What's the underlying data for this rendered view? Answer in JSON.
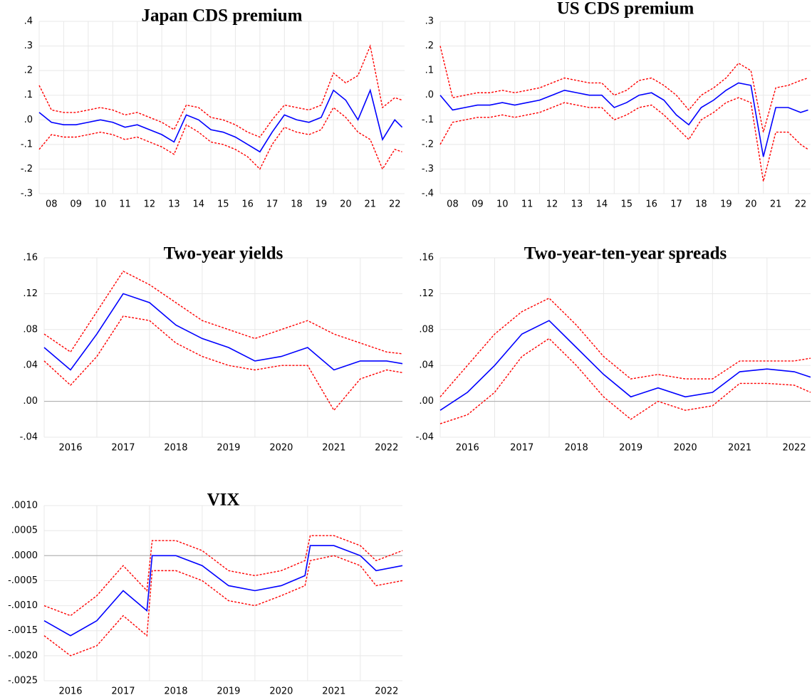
{
  "chart_data": [
    {
      "type": "line",
      "title": "Japan CDS premium",
      "x": [
        2008,
        2008.5,
        2009,
        2009.5,
        2010,
        2010.5,
        2011,
        2011.5,
        2012,
        2012.5,
        2013,
        2013.5,
        2014,
        2014.5,
        2015,
        2015.5,
        2016,
        2016.5,
        2017,
        2017.5,
        2018,
        2018.5,
        2019,
        2019.5,
        2020,
        2020.5,
        2021,
        2021.5,
        2022,
        2022.5,
        2022.8
      ],
      "series": [
        {
          "color": "#ff0000",
          "style": "dashed",
          "values": [
            0.14,
            0.04,
            0.03,
            0.03,
            0.04,
            0.05,
            0.04,
            0.02,
            0.03,
            0.01,
            -0.01,
            -0.04,
            0.06,
            0.05,
            0.01,
            0.0,
            -0.02,
            -0.05,
            -0.07,
            0.0,
            0.06,
            0.05,
            0.04,
            0.06,
            0.19,
            0.15,
            0.18,
            0.3,
            0.05,
            0.09,
            0.08
          ]
        },
        {
          "color": "#ff0000",
          "style": "dashed",
          "values": [
            -0.12,
            -0.06,
            -0.07,
            -0.07,
            -0.06,
            -0.05,
            -0.06,
            -0.08,
            -0.07,
            -0.09,
            -0.11,
            -0.14,
            -0.02,
            -0.05,
            -0.09,
            -0.1,
            -0.12,
            -0.15,
            -0.2,
            -0.1,
            -0.03,
            -0.05,
            -0.06,
            -0.04,
            0.05,
            0.01,
            -0.05,
            -0.08,
            -0.2,
            -0.12,
            -0.13
          ]
        },
        {
          "color": "#0000ff",
          "style": "solid",
          "values": [
            0.03,
            -0.01,
            -0.02,
            -0.02,
            -0.01,
            0.0,
            -0.01,
            -0.03,
            -0.02,
            -0.04,
            -0.06,
            -0.09,
            0.02,
            0.0,
            -0.04,
            -0.05,
            -0.07,
            -0.1,
            -0.13,
            -0.05,
            0.02,
            0.0,
            -0.01,
            0.01,
            0.12,
            0.08,
            0.0,
            0.12,
            -0.08,
            0.0,
            -0.03
          ]
        }
      ],
      "xlim": [
        2008,
        2022.9
      ],
      "xticks": [
        {
          "value": 2008,
          "label": "08"
        },
        {
          "value": 2009,
          "label": "09"
        },
        {
          "value": 2010,
          "label": "10"
        },
        {
          "value": 2011,
          "label": "11"
        },
        {
          "value": 2012,
          "label": "12"
        },
        {
          "value": 2013,
          "label": "13"
        },
        {
          "value": 2014,
          "label": "14"
        },
        {
          "value": 2015,
          "label": "15"
        },
        {
          "value": 2016,
          "label": "16"
        },
        {
          "value": 2017,
          "label": "17"
        },
        {
          "value": 2018,
          "label": "18"
        },
        {
          "value": 2019,
          "label": "19"
        },
        {
          "value": 2020,
          "label": "20"
        },
        {
          "value": 2021,
          "label": "21"
        },
        {
          "value": 2022,
          "label": "22"
        }
      ],
      "ylim": [
        -0.3,
        0.4
      ],
      "yticks": [
        {
          "value": 0.4,
          "label": ".4"
        },
        {
          "value": 0.3,
          "label": ".3"
        },
        {
          "value": 0.2,
          "label": ".2"
        },
        {
          "value": 0.1,
          "label": ".1"
        },
        {
          "value": 0,
          "label": ".0"
        },
        {
          "value": -0.1,
          "label": "-.1"
        },
        {
          "value": -0.2,
          "label": "-.2"
        },
        {
          "value": -0.3,
          "label": "-.3"
        }
      ],
      "grid": true,
      "zero_line": false
    },
    {
      "type": "line",
      "title": "US CDS premium",
      "x": [
        2008,
        2008.5,
        2009,
        2009.5,
        2010,
        2010.5,
        2011,
        2011.5,
        2012,
        2012.5,
        2013,
        2013.5,
        2014,
        2014.5,
        2015,
        2015.5,
        2016,
        2016.5,
        2017,
        2017.5,
        2018,
        2018.5,
        2019,
        2019.5,
        2020,
        2020.5,
        2021,
        2021.5,
        2022,
        2022.5,
        2022.8
      ],
      "series": [
        {
          "color": "#ff0000",
          "style": "dashed",
          "values": [
            0.2,
            -0.01,
            0.0,
            0.01,
            0.01,
            0.02,
            0.01,
            0.02,
            0.03,
            0.05,
            0.07,
            0.06,
            0.05,
            0.05,
            0.0,
            0.02,
            0.06,
            0.07,
            0.04,
            0.0,
            -0.06,
            0.0,
            0.03,
            0.07,
            0.13,
            0.1,
            -0.15,
            0.03,
            0.04,
            0.06,
            0.07
          ]
        },
        {
          "color": "#ff0000",
          "style": "dashed",
          "values": [
            -0.2,
            -0.11,
            -0.1,
            -0.09,
            -0.09,
            -0.08,
            -0.09,
            -0.08,
            -0.07,
            -0.05,
            -0.03,
            -0.04,
            -0.05,
            -0.05,
            -0.1,
            -0.08,
            -0.05,
            -0.04,
            -0.08,
            -0.13,
            -0.18,
            -0.1,
            -0.07,
            -0.03,
            -0.01,
            -0.03,
            -0.35,
            -0.15,
            -0.15,
            -0.2,
            -0.22
          ]
        },
        {
          "color": "#0000ff",
          "style": "solid",
          "values": [
            0.0,
            -0.06,
            -0.05,
            -0.04,
            -0.04,
            -0.03,
            -0.04,
            -0.03,
            -0.02,
            0.0,
            0.02,
            0.01,
            0.0,
            0.0,
            -0.05,
            -0.03,
            0.0,
            0.01,
            -0.02,
            -0.08,
            -0.12,
            -0.05,
            -0.02,
            0.02,
            0.05,
            0.04,
            -0.25,
            -0.05,
            -0.05,
            -0.07,
            -0.06
          ]
        }
      ],
      "xlim": [
        2008,
        2022.9
      ],
      "xticks": [
        {
          "value": 2008,
          "label": "08"
        },
        {
          "value": 2009,
          "label": "09"
        },
        {
          "value": 2010,
          "label": "10"
        },
        {
          "value": 2011,
          "label": "11"
        },
        {
          "value": 2012,
          "label": "12"
        },
        {
          "value": 2013,
          "label": "13"
        },
        {
          "value": 2014,
          "label": "14"
        },
        {
          "value": 2015,
          "label": "15"
        },
        {
          "value": 2016,
          "label": "16"
        },
        {
          "value": 2017,
          "label": "17"
        },
        {
          "value": 2018,
          "label": "18"
        },
        {
          "value": 2019,
          "label": "19"
        },
        {
          "value": 2020,
          "label": "20"
        },
        {
          "value": 2021,
          "label": "21"
        },
        {
          "value": 2022,
          "label": "22"
        }
      ],
      "ylim": [
        -0.4,
        0.3
      ],
      "yticks": [
        {
          "value": 0.3,
          "label": ".3"
        },
        {
          "value": 0.2,
          "label": ".2"
        },
        {
          "value": 0.1,
          "label": ".1"
        },
        {
          "value": 0,
          "label": ".0"
        },
        {
          "value": -0.1,
          "label": "-.1"
        },
        {
          "value": -0.2,
          "label": "-.2"
        },
        {
          "value": -0.3,
          "label": "-.3"
        },
        {
          "value": -0.4,
          "label": "-.4"
        }
      ],
      "grid": true,
      "zero_line": false
    },
    {
      "type": "line",
      "title": "Two-year yields",
      "x": [
        2016,
        2016.5,
        2017,
        2017.5,
        2018,
        2018.5,
        2019,
        2019.5,
        2020,
        2020.5,
        2021,
        2021.5,
        2022,
        2022.5,
        2022.8
      ],
      "series": [
        {
          "color": "#ff0000",
          "style": "dashed",
          "values": [
            0.075,
            0.055,
            0.1,
            0.145,
            0.13,
            0.11,
            0.09,
            0.08,
            0.07,
            0.08,
            0.09,
            0.075,
            0.065,
            0.055,
            0.053
          ]
        },
        {
          "color": "#ff0000",
          "style": "dashed",
          "values": [
            0.045,
            0.018,
            0.05,
            0.095,
            0.09,
            0.065,
            0.05,
            0.04,
            0.035,
            0.04,
            0.04,
            -0.01,
            0.025,
            0.035,
            0.032
          ]
        },
        {
          "color": "#0000ff",
          "style": "solid",
          "values": [
            0.06,
            0.035,
            0.075,
            0.12,
            0.11,
            0.085,
            0.07,
            0.06,
            0.045,
            0.05,
            0.06,
            0.035,
            0.045,
            0.045,
            0.042
          ]
        }
      ],
      "xlim": [
        2016,
        2022.8
      ],
      "xticks": [
        2016,
        2017,
        2018,
        2019,
        2020,
        2021,
        2022
      ],
      "ylim": [
        -0.04,
        0.16
      ],
      "yticks": [
        {
          "value": 0.16,
          "label": ".16"
        },
        {
          "value": 0.12,
          "label": ".12"
        },
        {
          "value": 0.08,
          "label": ".08"
        },
        {
          "value": 0.04,
          "label": ".04"
        },
        {
          "value": 0,
          "label": ".00"
        },
        {
          "value": -0.04,
          "label": "-.04"
        }
      ],
      "grid": true,
      "zero_line": true
    },
    {
      "type": "line",
      "title": "Two-year-ten-year spreads",
      "x": [
        2016,
        2016.5,
        2017,
        2017.5,
        2018,
        2018.5,
        2019,
        2019.5,
        2020,
        2020.5,
        2021,
        2021.5,
        2022,
        2022.5,
        2022.8
      ],
      "series": [
        {
          "color": "#ff0000",
          "style": "dashed",
          "values": [
            0.005,
            0.04,
            0.075,
            0.1,
            0.115,
            0.085,
            0.05,
            0.025,
            0.03,
            0.025,
            0.025,
            0.045,
            0.045,
            0.045,
            0.048
          ]
        },
        {
          "color": "#ff0000",
          "style": "dashed",
          "values": [
            -0.025,
            -0.015,
            0.01,
            0.05,
            0.07,
            0.04,
            0.005,
            -0.02,
            0.0,
            -0.01,
            -0.005,
            0.02,
            0.02,
            0.018,
            0.01
          ]
        },
        {
          "color": "#0000ff",
          "style": "solid",
          "values": [
            -0.01,
            0.01,
            0.04,
            0.075,
            0.09,
            0.06,
            0.03,
            0.005,
            0.015,
            0.005,
            0.01,
            0.033,
            0.036,
            0.033,
            0.027
          ]
        }
      ],
      "xlim": [
        2016,
        2022.8
      ],
      "xticks": [
        2016,
        2017,
        2018,
        2019,
        2020,
        2021,
        2022
      ],
      "ylim": [
        -0.04,
        0.16
      ],
      "yticks": [
        {
          "value": 0.16,
          "label": ".16"
        },
        {
          "value": 0.12,
          "label": ".12"
        },
        {
          "value": 0.08,
          "label": ".08"
        },
        {
          "value": 0.04,
          "label": ".04"
        },
        {
          "value": 0,
          "label": ".00"
        },
        {
          "value": -0.04,
          "label": "-.04"
        }
      ],
      "grid": true,
      "zero_line": true
    },
    {
      "type": "line",
      "title": "VIX",
      "x": [
        2016,
        2016.5,
        2017,
        2017.5,
        2017.95,
        2018.05,
        2018.5,
        2019,
        2019.5,
        2020,
        2020.5,
        2020.95,
        2021.05,
        2021.5,
        2022,
        2022.3,
        2022.8
      ],
      "series": [
        {
          "color": "#ff0000",
          "style": "dashed",
          "values": [
            -0.001,
            -0.0012,
            -0.0008,
            -0.0002,
            -0.0007,
            0.0003,
            0.0003,
            0.0001,
            -0.0003,
            -0.0004,
            -0.0003,
            -0.0001,
            0.0004,
            0.0004,
            0.0002,
            -0.0001,
            0.0001
          ]
        },
        {
          "color": "#ff0000",
          "style": "dashed",
          "values": [
            -0.0016,
            -0.002,
            -0.0018,
            -0.0012,
            -0.0016,
            -0.0003,
            -0.0003,
            -0.0005,
            -0.0009,
            -0.001,
            -0.0008,
            -0.0006,
            -0.0001,
            0.0,
            -0.0002,
            -0.0006,
            -0.0005
          ]
        },
        {
          "color": "#0000ff",
          "style": "solid",
          "values": [
            -0.0013,
            -0.0016,
            -0.0013,
            -0.0007,
            -0.0011,
            0.0,
            0.0,
            -0.0002,
            -0.0006,
            -0.0007,
            -0.0006,
            -0.0004,
            0.0002,
            0.0002,
            0.0,
            -0.0003,
            -0.0002
          ]
        }
      ],
      "xlim": [
        2016,
        2022.8
      ],
      "xticks": [
        2016,
        2017,
        2018,
        2019,
        2020,
        2021,
        2022
      ],
      "ylim": [
        -0.0025,
        0.001
      ],
      "yticks": [
        {
          "value": 0.001,
          "label": ".0010"
        },
        {
          "value": 0.0005,
          "label": ".0005"
        },
        {
          "value": 0,
          "label": ".0000"
        },
        {
          "value": -0.0005,
          "label": "-.0005"
        },
        {
          "value": -0.001,
          "label": "-.0010"
        },
        {
          "value": -0.0015,
          "label": "-.0015"
        },
        {
          "value": -0.002,
          "label": "-.0020"
        },
        {
          "value": -0.0025,
          "label": "-.0025"
        }
      ],
      "grid": true,
      "zero_line": true
    }
  ]
}
